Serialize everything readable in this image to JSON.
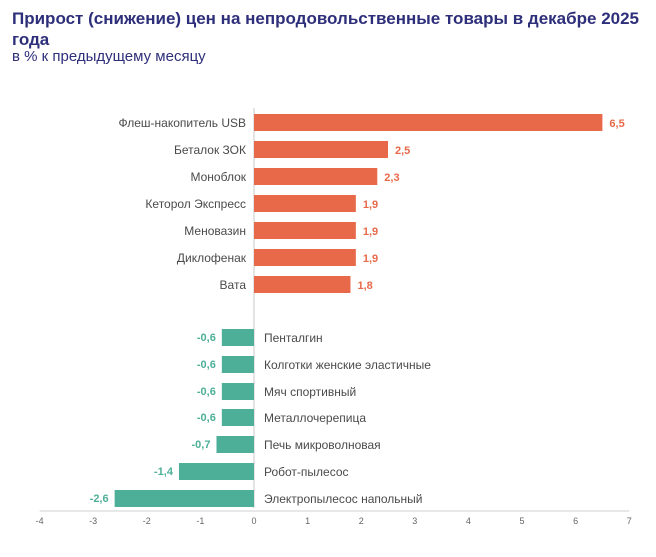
{
  "chart_data": {
    "type": "bar",
    "orientation": "horizontal",
    "title": "Прирост (снижение) цен на непродовольственные товары в декабре 2025 года",
    "subtitle": "в % к предыдущему месяцу",
    "xlim": [
      -4,
      7
    ],
    "x_ticks": [
      "-4",
      "-3",
      "-2",
      "-1",
      "0",
      "1",
      "2",
      "3",
      "4",
      "5",
      "6",
      "7"
    ],
    "grid": false,
    "colors": {
      "positive": "#e8694a",
      "negative": "#4daf98",
      "text": "#2e2f7a"
    },
    "increase": {
      "categories": [
        "Флеш-накопитель USB",
        "Беталок ЗОК",
        "Моноблок",
        "Кеторол Экспресс",
        "Меновазин",
        "Диклофенак",
        "Вата"
      ],
      "values": [
        6.5,
        2.5,
        2.3,
        1.9,
        1.9,
        1.9,
        1.8
      ],
      "labels": [
        "6,5",
        "2,5",
        "2,3",
        "1,9",
        "1,9",
        "1,9",
        "1,8"
      ]
    },
    "decrease": {
      "categories": [
        "Пенталгин",
        "Колготки женские эластичные",
        "Мяч спортивный",
        "Металлочерепица",
        "Печь микроволновая",
        "Робот-пылесос",
        "Электропылесос напольный"
      ],
      "values": [
        -0.6,
        -0.6,
        -0.6,
        -0.6,
        -0.7,
        -1.4,
        -2.6
      ],
      "labels": [
        "-0,6",
        "-0,6",
        "-0,6",
        "-0,6",
        "-0,7",
        "-1,4",
        "-2,6"
      ]
    }
  }
}
